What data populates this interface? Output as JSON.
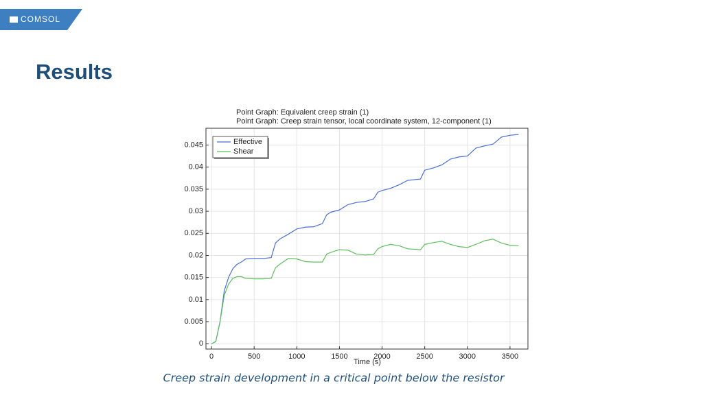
{
  "logo": "COMSOL",
  "heading": "Results",
  "caption": "Creep strain development in a critical point below the resistor",
  "chart_data": {
    "type": "line",
    "title": "Point Graph: Equivalent creep strain (1)",
    "subtitle": "Point Graph: Creep strain tensor, local coordinate system, 12-component (1)",
    "xlabel": "Time (s)",
    "x": [
      0,
      50,
      100,
      150,
      200,
      250,
      300,
      350,
      400,
      500,
      600,
      700,
      750,
      800,
      900,
      1000,
      1100,
      1200,
      1300,
      1350,
      1400,
      1500,
      1600,
      1700,
      1800,
      1900,
      1950,
      2000,
      2100,
      2200,
      2300,
      2450,
      2500,
      2600,
      2700,
      2800,
      2900,
      3000,
      3100,
      3200,
      3300,
      3400,
      3500,
      3600
    ],
    "series": [
      {
        "name": "Effective",
        "color": "#4a6fd4",
        "values": [
          0,
          0.0005,
          0.005,
          0.012,
          0.015,
          0.017,
          0.018,
          0.0185,
          0.0192,
          0.0193,
          0.0193,
          0.0195,
          0.0228,
          0.0237,
          0.0248,
          0.026,
          0.0264,
          0.0265,
          0.0272,
          0.0292,
          0.0298,
          0.0303,
          0.0315,
          0.032,
          0.0322,
          0.0328,
          0.0343,
          0.0347,
          0.0352,
          0.036,
          0.037,
          0.0373,
          0.0393,
          0.0398,
          0.0405,
          0.0418,
          0.0423,
          0.0425,
          0.0443,
          0.0448,
          0.0452,
          0.0468,
          0.0472,
          0.0474
        ]
      },
      {
        "name": "Shear",
        "color": "#5cbf5c",
        "values": [
          0,
          0.0005,
          0.005,
          0.011,
          0.0135,
          0.0148,
          0.0152,
          0.0152,
          0.0148,
          0.0147,
          0.0147,
          0.0148,
          0.0172,
          0.018,
          0.0193,
          0.0192,
          0.0186,
          0.0185,
          0.0185,
          0.0203,
          0.0207,
          0.0213,
          0.0212,
          0.0203,
          0.0201,
          0.0202,
          0.0215,
          0.022,
          0.0225,
          0.0222,
          0.0215,
          0.0213,
          0.0225,
          0.0229,
          0.0232,
          0.0225,
          0.022,
          0.0218,
          0.0225,
          0.0233,
          0.0237,
          0.0228,
          0.0223,
          0.0222
        ]
      }
    ],
    "xlim": [
      -65,
      3710
    ],
    "ylim": [
      -0.0012,
      0.0488
    ],
    "xticks": [
      0,
      500,
      1000,
      1500,
      2000,
      2500,
      3000,
      3500
    ],
    "yticks": [
      0,
      0.005,
      0.01,
      0.015,
      0.02,
      0.025,
      0.03,
      0.035,
      0.04,
      0.045
    ],
    "grid": true,
    "legend": "upper-left"
  }
}
